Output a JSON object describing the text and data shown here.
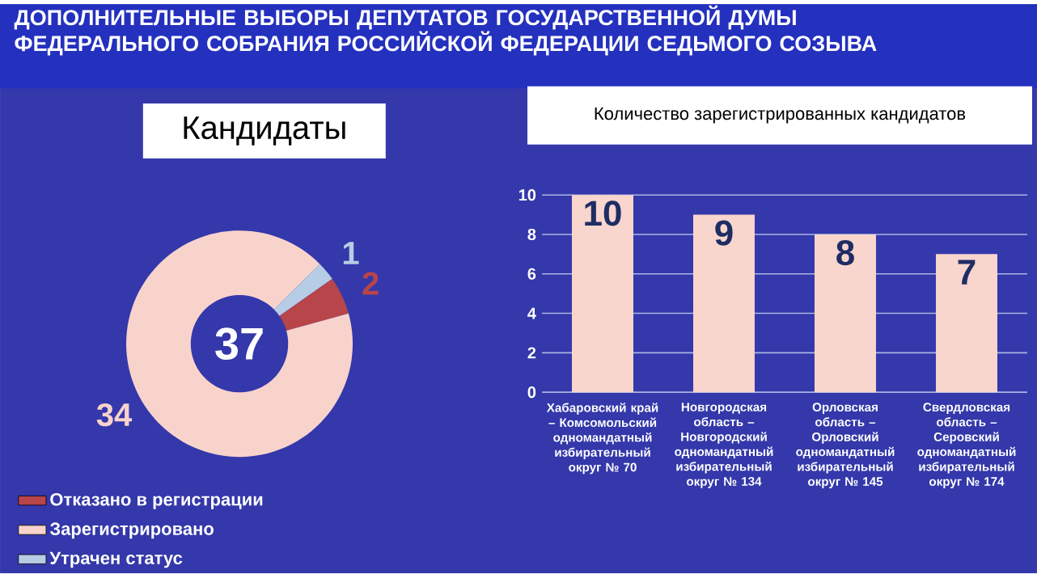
{
  "chart_data": [
    {
      "type": "donut",
      "title": "ДОПОЛНИТЕЛЬНЫЕ  ВЫБОРЫ ДЕПУТАТОВ ГОСУДАРСТВЕННОЙ ДУМЫ ФЕДЕРАЛЬНОГО СОБРАНИЯ РОССИЙСКОЙ ФЕДЕРАЦИИ СЕДЬМОГО СОЗЫВА",
      "subtitle": "Кандидаты",
      "categories": [
        "Отказано в регистрации",
        "Зарегистрировано",
        "Утрачен статус"
      ],
      "values": [
        2,
        34,
        1
      ],
      "colors": [
        "#b8454a",
        "#f8d3cc",
        "#b7cde6"
      ],
      "data_labels": true,
      "legend": "bottom",
      "annotations": [
        "37"
      ]
    },
    {
      "type": "bar",
      "title": "Количество зарегистрированных кандидатов",
      "categories": [
        "Хабаровский край – Комсомольский одномандатный избирательный округ № 70",
        "Новгородская область – Новгородский одномандатный избирательный округ № 134",
        "Орловская область – Орловский одномандатный избирательный округ № 145",
        "Свердловская область – Серовский одномандатный избирательный округ № 174"
      ],
      "values": [
        10,
        9,
        8,
        7
      ],
      "color": "#f8d5cd",
      "ylim": [
        0,
        10
      ],
      "yticks": [
        0,
        2,
        4,
        6,
        8,
        10
      ],
      "grid": "y",
      "data_labels": true
    }
  ]
}
